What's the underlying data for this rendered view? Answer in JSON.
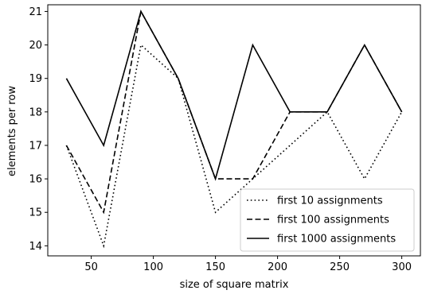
{
  "chart_data": {
    "type": "line",
    "title": "",
    "xlabel": "size of square matrix",
    "ylabel": "elements per row",
    "x": [
      30,
      60,
      90,
      120,
      150,
      180,
      210,
      240,
      270,
      300
    ],
    "xlim": [
      15,
      315
    ],
    "ylim": [
      13.7,
      21.2
    ],
    "xticks": [
      50,
      100,
      150,
      200,
      250,
      300
    ],
    "yticks": [
      14,
      15,
      16,
      17,
      18,
      19,
      20,
      21
    ],
    "grid": false,
    "legend_position": "lower-right",
    "series": [
      {
        "name": "first 10 assignments",
        "style": "dotted",
        "color": "#000000",
        "values": [
          17,
          14,
          20,
          19,
          15,
          16,
          17,
          18,
          16,
          18
        ]
      },
      {
        "name": "first 100 assignments",
        "style": "dashed",
        "color": "#000000",
        "values": [
          17,
          15,
          21,
          19,
          16,
          16,
          18,
          18,
          20,
          18
        ]
      },
      {
        "name": "first 1000 assignments",
        "style": "solid",
        "color": "#000000",
        "values": [
          19,
          17,
          21,
          19,
          16,
          20,
          18,
          18,
          20,
          18
        ]
      }
    ]
  }
}
